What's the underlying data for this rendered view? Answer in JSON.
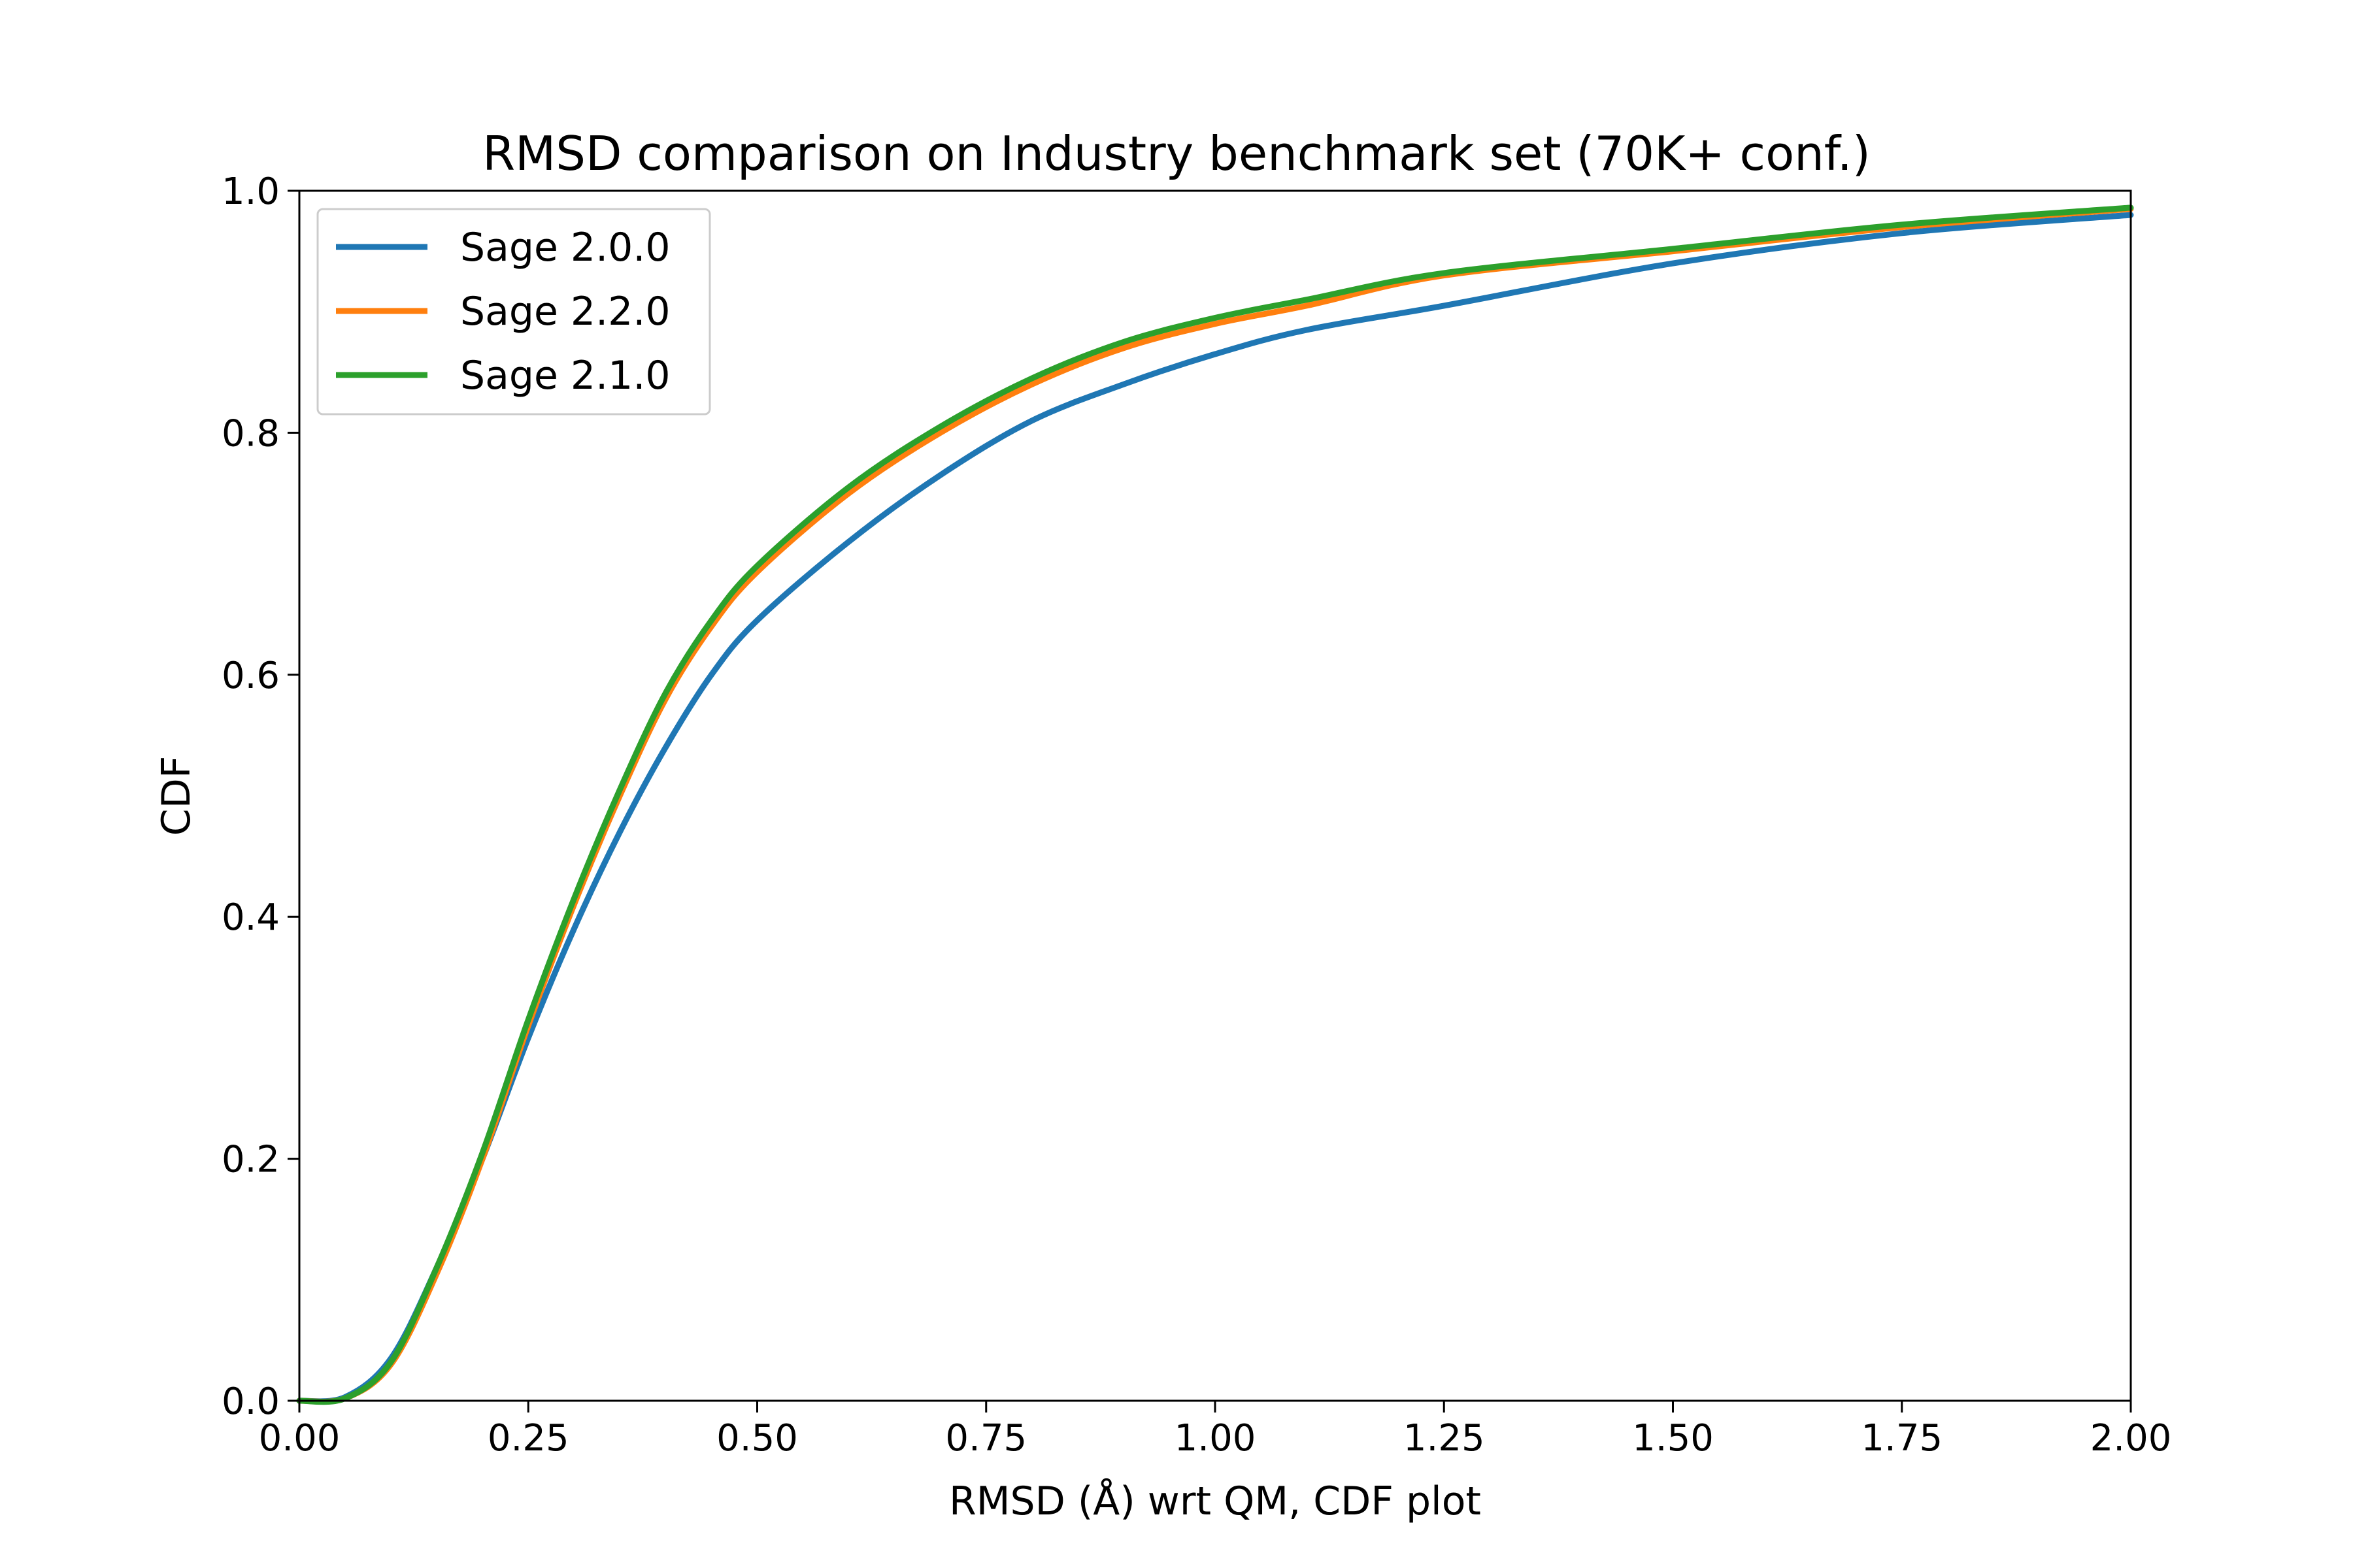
{
  "chart_data": {
    "type": "line",
    "title": "RMSD comparison on Industry benchmark set (70K+ conf.)",
    "xlabel": "RMSD (Å) wrt QM, CDF plot",
    "ylabel": "CDF",
    "xlim": [
      0.0,
      2.0
    ],
    "ylim": [
      0.0,
      1.0
    ],
    "grid": false,
    "legend_position": "top-left",
    "x_ticks": [
      "0.00",
      "0.25",
      "0.50",
      "0.75",
      "1.00",
      "1.25",
      "1.50",
      "1.75",
      "2.00"
    ],
    "y_ticks": [
      "0.0",
      "0.2",
      "0.4",
      "0.6",
      "0.8",
      "1.0"
    ],
    "x": [
      0.0,
      0.05,
      0.1,
      0.15,
      0.2,
      0.25,
      0.3,
      0.35,
      0.4,
      0.45,
      0.5,
      0.6,
      0.7,
      0.8,
      0.9,
      1.0,
      1.1,
      1.25,
      1.5,
      1.75,
      2.0
    ],
    "series": [
      {
        "name": "Sage 2.0.0",
        "color": "#1f77b4",
        "values": [
          0.0,
          0.003,
          0.035,
          0.11,
          0.2,
          0.3,
          0.39,
          0.47,
          0.54,
          0.6,
          0.645,
          0.71,
          0.765,
          0.81,
          0.84,
          0.865,
          0.885,
          0.905,
          0.94,
          0.965,
          0.98
        ]
      },
      {
        "name": "Sage 2.2.0",
        "color": "#ff7f0e",
        "values": [
          0.0,
          0.002,
          0.03,
          0.105,
          0.2,
          0.31,
          0.41,
          0.5,
          0.58,
          0.64,
          0.685,
          0.75,
          0.8,
          0.84,
          0.87,
          0.89,
          0.905,
          0.93,
          0.95,
          0.97,
          0.985
        ]
      },
      {
        "name": "Sage 2.1.0",
        "color": "#2ca02c",
        "values": [
          0.0,
          0.002,
          0.032,
          0.11,
          0.205,
          0.315,
          0.415,
          0.505,
          0.585,
          0.645,
          0.69,
          0.755,
          0.805,
          0.845,
          0.875,
          0.895,
          0.91,
          0.932,
          0.952,
          0.972,
          0.986
        ]
      }
    ]
  }
}
